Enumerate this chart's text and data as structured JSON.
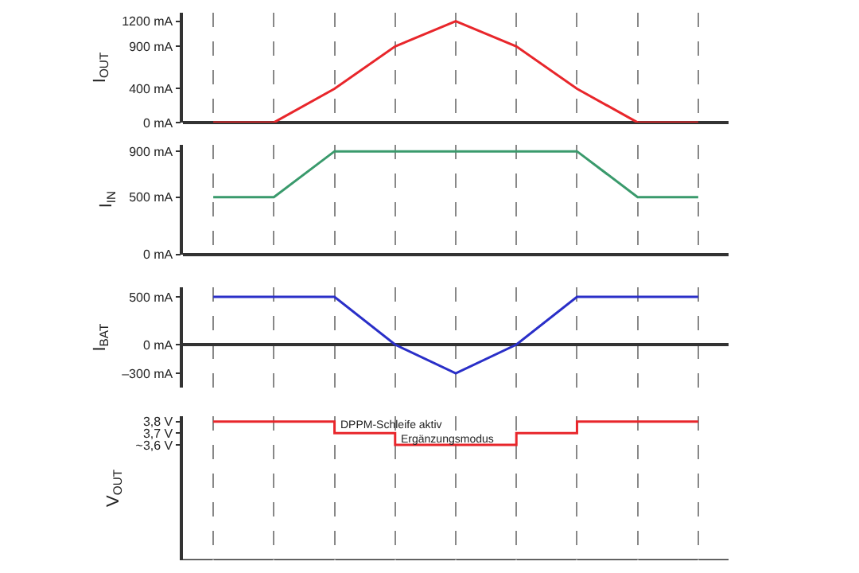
{
  "chart_data": [
    {
      "type": "line",
      "ylabel": "I$_{OUT}$",
      "categories": [
        null,
        null,
        null,
        null,
        null,
        null,
        null,
        null,
        null
      ],
      "values": [
        0,
        0,
        400,
        900,
        1200,
        900,
        400,
        0,
        0
      ],
      "color": "#e8262b",
      "ylim": [
        0,
        1300
      ],
      "yticks": [
        {
          "value": 0,
          "label": "0 mA"
        },
        {
          "value": 400,
          "label": "400 mA"
        },
        {
          "value": 900,
          "label": "900 mA"
        },
        {
          "value": 1200,
          "label": "1200 mA"
        }
      ],
      "grid": "x",
      "tick_labels": "y"
    },
    {
      "type": "line",
      "ylabel": "I$_{IN}$",
      "categories": [
        null,
        null,
        null,
        null,
        null,
        null,
        null,
        null,
        null
      ],
      "values": [
        500,
        500,
        900,
        900,
        900,
        900,
        900,
        500,
        500
      ],
      "color": "#3a9a6c",
      "ylim": [
        0,
        960
      ],
      "yticks": [
        {
          "value": 0,
          "label": "0 mA"
        },
        {
          "value": 500,
          "label": "500 mA"
        },
        {
          "value": 900,
          "label": "900 mA"
        }
      ],
      "grid": "x",
      "tick_labels": "y"
    },
    {
      "type": "line",
      "ylabel": "I$_{BAT}$",
      "categories": [
        null,
        null,
        null,
        null,
        null,
        null,
        null,
        null,
        null
      ],
      "values": [
        500,
        500,
        500,
        0,
        -300,
        0,
        500,
        500,
        500
      ],
      "color": "#2a2fc8",
      "ylim": [
        -450,
        600
      ],
      "yticks": [
        {
          "value": -300,
          "label": "–300 mA"
        },
        {
          "value": 0,
          "label": "0 mA"
        },
        {
          "value": 500,
          "label": "500 mA"
        }
      ],
      "grid": "x",
      "tick_labels": "y"
    },
    {
      "type": "step",
      "ylabel": "V$_{OUT}$",
      "categories": [
        null,
        null,
        null,
        null,
        null,
        null,
        null,
        null,
        null
      ],
      "values": [
        3.8,
        3.8,
        3.7,
        3.6,
        3.6,
        3.7,
        3.8,
        3.8,
        3.8
      ],
      "color": "#e8262b",
      "ylim": [
        2.6,
        3.85
      ],
      "yticks": [
        {
          "value": 3.6,
          "label": "~3,6 V"
        },
        {
          "value": 3.7,
          "label": "3,7 V"
        },
        {
          "value": 3.8,
          "label": "3,8 V"
        }
      ],
      "grid": "x",
      "tick_labels": "y",
      "annotations": [
        "DPPM-Schleife aktiv",
        "Ergänzungsmodus"
      ]
    }
  ]
}
